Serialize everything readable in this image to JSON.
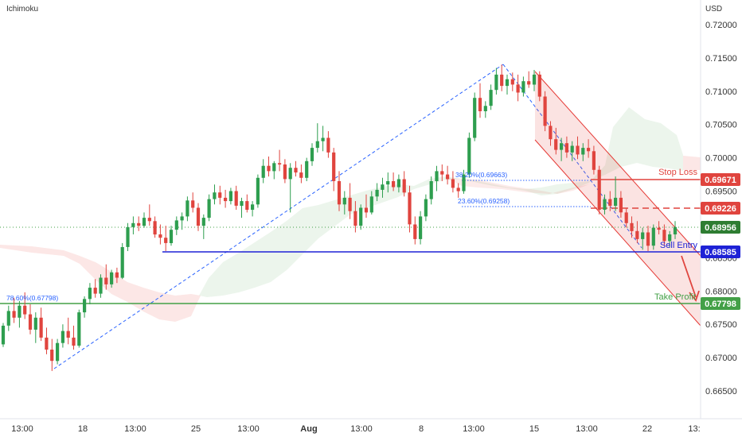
{
  "indicator_label": "Ichimoku",
  "currency_label": "USD",
  "chart_data": {
    "type": "candlestick",
    "yticks": [
      "0.72000",
      "0.71500",
      "0.71000",
      "0.70500",
      "0.70000",
      "0.69500",
      "0.69000",
      "0.68500",
      "0.68000",
      "0.67500",
      "0.67000",
      "0.66500"
    ],
    "ylim": [
      0.6626,
      0.724
    ],
    "xticks": [
      "13:00",
      "18",
      "13:00",
      "25",
      "13:00",
      "Aug",
      "13:00",
      "8",
      "13:00",
      "15",
      "13:00",
      "22",
      "13:"
    ],
    "levels": {
      "stop_loss": {
        "label": "Stop Loss",
        "value": "0.69671",
        "color": "#e0443e"
      },
      "take_profit": {
        "label": "Take Profit",
        "value": "0.67798",
        "color": "#43a047"
      },
      "sell_entry": {
        "label": "Sell Entry",
        "value": "0.68585",
        "color": "#1e22d6"
      },
      "level_2": {
        "value": "0.69226",
        "color": "#e0443e"
      },
      "current": {
        "value": "0.68956",
        "color": "#2e7d32"
      }
    },
    "fib_labels": {
      "f786": "78.60%(0.67798)",
      "f382": "38.20%(0.69663)",
      "f236": "23.60%(0.69258)"
    },
    "candles": [
      [
        0.672,
        0.6752,
        0.6716,
        0.6748
      ],
      [
        0.6748,
        0.6778,
        0.674,
        0.677
      ],
      [
        0.677,
        0.679,
        0.6752,
        0.676
      ],
      [
        0.676,
        0.6785,
        0.6745,
        0.6778
      ],
      [
        0.6778,
        0.6798,
        0.6758,
        0.6765
      ],
      [
        0.6765,
        0.678,
        0.6735,
        0.6742
      ],
      [
        0.6742,
        0.6768,
        0.6722,
        0.676
      ],
      [
        0.676,
        0.6775,
        0.6725,
        0.673
      ],
      [
        0.673,
        0.6745,
        0.6705,
        0.6712
      ],
      [
        0.6712,
        0.6728,
        0.668,
        0.6695
      ],
      [
        0.6695,
        0.6728,
        0.669,
        0.6722
      ],
      [
        0.6722,
        0.675,
        0.6715,
        0.674
      ],
      [
        0.674,
        0.676,
        0.672,
        0.673
      ],
      [
        0.673,
        0.6748,
        0.6712,
        0.6718
      ],
      [
        0.6718,
        0.6772,
        0.6715,
        0.6768
      ],
      [
        0.6768,
        0.6792,
        0.676,
        0.6788
      ],
      [
        0.6788,
        0.6812,
        0.678,
        0.6805
      ],
      [
        0.6805,
        0.6818,
        0.679,
        0.6796
      ],
      [
        0.6796,
        0.6825,
        0.679,
        0.682
      ],
      [
        0.682,
        0.684,
        0.6802,
        0.681
      ],
      [
        0.681,
        0.6832,
        0.6805,
        0.6828
      ],
      [
        0.6828,
        0.6835,
        0.6812,
        0.682
      ],
      [
        0.682,
        0.6872,
        0.6818,
        0.6866
      ],
      [
        0.6866,
        0.6902,
        0.686,
        0.6896
      ],
      [
        0.6896,
        0.6912,
        0.6885,
        0.6902
      ],
      [
        0.6902,
        0.6912,
        0.689,
        0.6898
      ],
      [
        0.6898,
        0.6918,
        0.6895,
        0.691
      ],
      [
        0.691,
        0.693,
        0.6898,
        0.6905
      ],
      [
        0.6905,
        0.6912,
        0.688,
        0.6885
      ],
      [
        0.6885,
        0.69,
        0.687,
        0.688
      ],
      [
        0.688,
        0.6898,
        0.686,
        0.6872
      ],
      [
        0.6872,
        0.6898,
        0.6868,
        0.6892
      ],
      [
        0.6892,
        0.6912,
        0.6884,
        0.6906
      ],
      [
        0.6906,
        0.6918,
        0.6892,
        0.6912
      ],
      [
        0.6912,
        0.6942,
        0.6905,
        0.6936
      ],
      [
        0.6936,
        0.6948,
        0.6918,
        0.6925
      ],
      [
        0.6925,
        0.6932,
        0.689,
        0.6898
      ],
      [
        0.6898,
        0.6915,
        0.6878,
        0.691
      ],
      [
        0.691,
        0.6945,
        0.6905,
        0.6938
      ],
      [
        0.6938,
        0.696,
        0.693,
        0.6948
      ],
      [
        0.6948,
        0.6958,
        0.693,
        0.694
      ],
      [
        0.694,
        0.6952,
        0.6925,
        0.6935
      ],
      [
        0.6935,
        0.6955,
        0.693,
        0.695
      ],
      [
        0.695,
        0.6958,
        0.6922,
        0.6928
      ],
      [
        0.6928,
        0.694,
        0.691,
        0.6935
      ],
      [
        0.6935,
        0.6945,
        0.6918,
        0.6922
      ],
      [
        0.6922,
        0.6935,
        0.6912,
        0.693
      ],
      [
        0.693,
        0.6975,
        0.6925,
        0.697
      ],
      [
        0.697,
        0.6998,
        0.6962,
        0.6988
      ],
      [
        0.6988,
        0.7002,
        0.6972,
        0.698
      ],
      [
        0.698,
        0.6995,
        0.6968,
        0.6992
      ],
      [
        0.6992,
        0.7012,
        0.698,
        0.699
      ],
      [
        0.699,
        0.6998,
        0.6962,
        0.6968
      ],
      [
        0.6968,
        0.6992,
        0.6918,
        0.6985
      ],
      [
        0.6985,
        0.6995,
        0.6972,
        0.6978
      ],
      [
        0.6978,
        0.699,
        0.6962,
        0.697
      ],
      [
        0.697,
        0.7,
        0.6965,
        0.6995
      ],
      [
        0.6995,
        0.7022,
        0.6988,
        0.7015
      ],
      [
        0.7015,
        0.7052,
        0.7008,
        0.7025
      ],
      [
        0.7025,
        0.7048,
        0.701,
        0.703
      ],
      [
        0.703,
        0.704,
        0.7,
        0.7008
      ],
      [
        0.7008,
        0.7015,
        0.695,
        0.6965
      ],
      [
        0.6965,
        0.698,
        0.692,
        0.693
      ],
      [
        0.693,
        0.695,
        0.6915,
        0.694
      ],
      [
        0.694,
        0.6962,
        0.6908,
        0.692
      ],
      [
        0.692,
        0.6935,
        0.6888,
        0.6898
      ],
      [
        0.6898,
        0.693,
        0.6892,
        0.6925
      ],
      [
        0.6925,
        0.6945,
        0.691,
        0.6918
      ],
      [
        0.6918,
        0.695,
        0.6915,
        0.6942
      ],
      [
        0.6942,
        0.6962,
        0.6935,
        0.6952
      ],
      [
        0.6952,
        0.697,
        0.694,
        0.696
      ],
      [
        0.696,
        0.6978,
        0.6948,
        0.6965
      ],
      [
        0.6965,
        0.6978,
        0.695,
        0.6956
      ],
      [
        0.6956,
        0.6975,
        0.6948,
        0.6968
      ],
      [
        0.6968,
        0.698,
        0.6942,
        0.6948
      ],
      [
        0.6948,
        0.6958,
        0.6888,
        0.69
      ],
      [
        0.69,
        0.6912,
        0.687,
        0.6878
      ],
      [
        0.6878,
        0.692,
        0.687,
        0.6912
      ],
      [
        0.6912,
        0.6945,
        0.6905,
        0.6938
      ],
      [
        0.6938,
        0.6972,
        0.693,
        0.6965
      ],
      [
        0.6965,
        0.6988,
        0.695,
        0.698
      ],
      [
        0.698,
        0.699,
        0.6965,
        0.6975
      ],
      [
        0.6975,
        0.6988,
        0.696,
        0.6968
      ],
      [
        0.6968,
        0.698,
        0.6948,
        0.6955
      ],
      [
        0.6955,
        0.6962,
        0.694,
        0.695
      ],
      [
        0.695,
        0.6982,
        0.6946,
        0.6975
      ],
      [
        0.6975,
        0.7038,
        0.697,
        0.703
      ],
      [
        0.703,
        0.7098,
        0.7025,
        0.709
      ],
      [
        0.709,
        0.7112,
        0.706,
        0.707
      ],
      [
        0.707,
        0.7085,
        0.706,
        0.7078
      ],
      [
        0.7078,
        0.711,
        0.7072,
        0.7102
      ],
      [
        0.7102,
        0.7135,
        0.7095,
        0.7125
      ],
      [
        0.7125,
        0.714,
        0.71,
        0.7108
      ],
      [
        0.7108,
        0.7125,
        0.7095,
        0.7118
      ],
      [
        0.7118,
        0.7128,
        0.71,
        0.711
      ],
      [
        0.711,
        0.7125,
        0.7085,
        0.7098
      ],
      [
        0.7098,
        0.7122,
        0.7092,
        0.7115
      ],
      [
        0.7115,
        0.713,
        0.7105,
        0.711
      ],
      [
        0.711,
        0.7132,
        0.71,
        0.7125
      ],
      [
        0.7125,
        0.713,
        0.7085,
        0.7092
      ],
      [
        0.7092,
        0.71,
        0.704,
        0.7048
      ],
      [
        0.7048,
        0.7055,
        0.7018,
        0.7028
      ],
      [
        0.7028,
        0.7045,
        0.7005,
        0.7012
      ],
      [
        0.7012,
        0.703,
        0.6995,
        0.7022
      ],
      [
        0.7022,
        0.7032,
        0.7,
        0.7008
      ],
      [
        0.7008,
        0.7025,
        0.6995,
        0.7018
      ],
      [
        0.7018,
        0.7032,
        0.6998,
        0.7005
      ],
      [
        0.7005,
        0.7022,
        0.6995,
        0.7015
      ],
      [
        0.7015,
        0.7028,
        0.7,
        0.701
      ],
      [
        0.701,
        0.7018,
        0.6975,
        0.6982
      ],
      [
        0.6982,
        0.6988,
        0.6915,
        0.6922
      ],
      [
        0.6922,
        0.6945,
        0.6915,
        0.6938
      ],
      [
        0.6938,
        0.695,
        0.692,
        0.6928
      ],
      [
        0.6928,
        0.6972,
        0.692,
        0.694
      ],
      [
        0.694,
        0.695,
        0.691,
        0.6918
      ],
      [
        0.6918,
        0.6925,
        0.6895,
        0.6902
      ],
      [
        0.6902,
        0.6912,
        0.688,
        0.689
      ],
      [
        0.689,
        0.6905,
        0.6872,
        0.6878
      ],
      [
        0.6878,
        0.6895,
        0.6862,
        0.6888
      ],
      [
        0.6888,
        0.6898,
        0.686,
        0.6868
      ],
      [
        0.6868,
        0.69,
        0.6862,
        0.6895
      ],
      [
        0.6895,
        0.6905,
        0.6885,
        0.6892
      ],
      [
        0.6892,
        0.69,
        0.6868,
        0.6875
      ],
      [
        0.6875,
        0.689,
        0.6865,
        0.6885
      ],
      [
        0.6885,
        0.6905,
        0.6878,
        0.6896
      ]
    ]
  }
}
